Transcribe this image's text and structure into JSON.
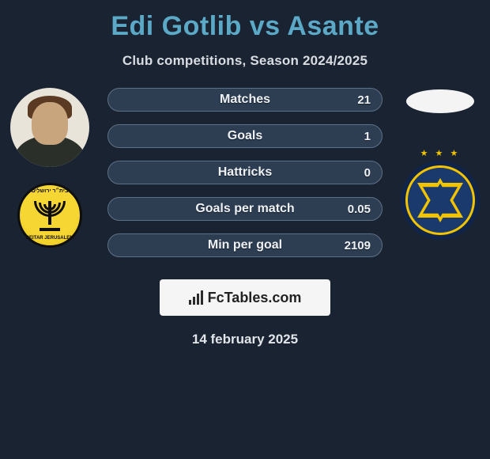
{
  "title": "Edi Gotlib vs Asante",
  "subtitle": "Club competitions, Season 2024/2025",
  "colors": {
    "title": "#5ba8c7",
    "background": "#1a2332",
    "pill_bg": "#2d3d52",
    "pill_border": "#5f7186"
  },
  "stats": [
    {
      "label": "Matches",
      "value_right": "21"
    },
    {
      "label": "Goals",
      "value_right": "1"
    },
    {
      "label": "Hattricks",
      "value_right": "0"
    },
    {
      "label": "Goals per match",
      "value_right": "0.05"
    },
    {
      "label": "Min per goal",
      "value_right": "2109"
    }
  ],
  "left": {
    "player_badge": {
      "type": "menorah",
      "colors": {
        "bg": "#f6d632",
        "fg": "#0e0e0e"
      }
    }
  },
  "right": {
    "club_badge": {
      "type": "star-of-david",
      "colors": {
        "bg": "#1a3a6e",
        "accent": "#f2c400"
      }
    }
  },
  "footer": {
    "logo_text": "FcTables.com",
    "date": "14 february 2025"
  }
}
